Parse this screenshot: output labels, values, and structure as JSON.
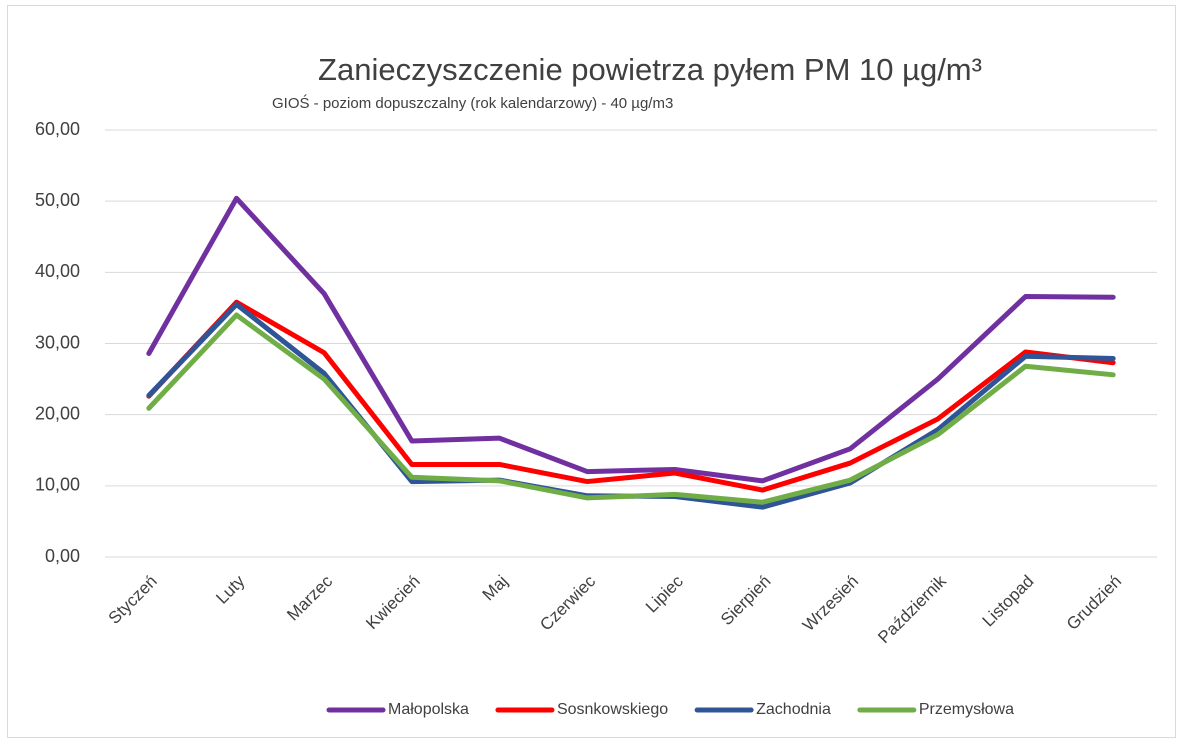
{
  "chart_data": {
    "type": "line",
    "title": "Zanieczyszczenie  powietrza  pyłem PM 10  µg/m³",
    "subtitle": "GIOŚ - poziom  dopuszczalny (rok kalendarzowy)  -  40 µg/m3",
    "categories": [
      "Styczeń",
      "Luty",
      "Marzec",
      "Kwiecień",
      "Maj",
      "Czerwiec",
      "Lipiec",
      "Sierpień",
      "Wrzesień",
      "Październik",
      "Listopad",
      "Grudzień"
    ],
    "series": [
      {
        "name": "Małopolska",
        "color": "#7030a0",
        "values": [
          28.6,
          50.4,
          37.0,
          16.3,
          16.7,
          12.0,
          12.3,
          10.7,
          15.2,
          25.0,
          36.6,
          36.5
        ]
      },
      {
        "name": "Sosnkowskiego",
        "color": "#ff0000",
        "values": [
          22.6,
          35.8,
          28.7,
          13.0,
          13.0,
          10.6,
          11.8,
          9.4,
          13.2,
          19.4,
          28.8,
          27.3
        ]
      },
      {
        "name": "Zachodnia",
        "color": "#2f5597",
        "values": [
          22.7,
          35.5,
          25.8,
          10.6,
          10.8,
          8.6,
          8.5,
          7.0,
          10.4,
          17.9,
          28.2,
          27.9
        ]
      },
      {
        "name": "Przemysłowa",
        "color": "#70ad47",
        "values": [
          20.9,
          34.0,
          25.0,
          11.2,
          10.7,
          8.3,
          8.8,
          7.7,
          10.8,
          17.2,
          26.8,
          25.6
        ]
      }
    ],
    "ylim": [
      0,
      60
    ],
    "yticks": [
      {
        "value": 0,
        "label": "0,00"
      },
      {
        "value": 10,
        "label": "10,00"
      },
      {
        "value": 20,
        "label": "20,00"
      },
      {
        "value": 30,
        "label": "30,00"
      },
      {
        "value": 40,
        "label": "40,00"
      },
      {
        "value": 50,
        "label": "50,00"
      },
      {
        "value": 60,
        "label": "60,00"
      }
    ],
    "grid": true,
    "legend": "bottom"
  }
}
